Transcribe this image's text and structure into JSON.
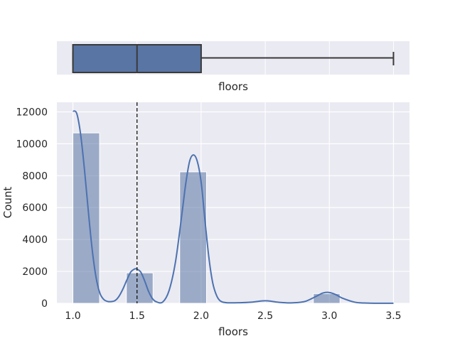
{
  "chart_data": [
    {
      "type": "box",
      "orientation": "horizontal",
      "xlabel": "floors",
      "xlim": [
        0.875,
        3.625
      ],
      "box": {
        "whisker_low": 1.0,
        "q1": 1.0,
        "median": 1.5,
        "q3": 2.0,
        "whisker_high": 3.5
      },
      "colors": {
        "box_fill": "#5975a4",
        "line": "#3a3a3a",
        "background": "#eaeaf2",
        "grid": "#ffffff"
      }
    },
    {
      "type": "bar",
      "subtype": "histogram_with_kde",
      "xlabel": "floors",
      "ylabel": "Count",
      "xlim": [
        0.875,
        3.625
      ],
      "ylim": [
        0,
        12600
      ],
      "x_ticks": [
        "1.0",
        "1.5",
        "2.0",
        "2.5",
        "3.0",
        "3.5"
      ],
      "y_ticks": [
        "0",
        "2000",
        "4000",
        "6000",
        "8000",
        "10000",
        "12000"
      ],
      "bins": [
        {
          "start": 1.0,
          "end": 1.208,
          "count": 10680
        },
        {
          "start": 1.208,
          "end": 1.417,
          "count": 0
        },
        {
          "start": 1.417,
          "end": 1.625,
          "count": 1910
        },
        {
          "start": 1.625,
          "end": 1.833,
          "count": 0
        },
        {
          "start": 1.833,
          "end": 2.042,
          "count": 8240
        },
        {
          "start": 2.042,
          "end": 2.25,
          "count": 0
        },
        {
          "start": 2.25,
          "end": 2.458,
          "count": 0
        },
        {
          "start": 2.458,
          "end": 2.667,
          "count": 8
        },
        {
          "start": 2.667,
          "end": 2.875,
          "count": 0
        },
        {
          "start": 2.875,
          "end": 3.083,
          "count": 610
        },
        {
          "start": 3.083,
          "end": 3.292,
          "count": 0
        },
        {
          "start": 3.292,
          "end": 3.5,
          "count": 5
        }
      ],
      "kde": {
        "x": [
          1.0,
          1.03,
          1.06,
          1.09,
          1.12,
          1.15,
          1.18,
          1.21,
          1.24,
          1.27,
          1.3,
          1.33,
          1.36,
          1.39,
          1.42,
          1.45,
          1.48,
          1.5,
          1.53,
          1.56,
          1.59,
          1.62,
          1.65,
          1.7,
          1.75,
          1.8,
          1.85,
          1.88,
          1.91,
          1.94,
          1.97,
          2.0,
          2.03,
          2.06,
          2.09,
          2.12,
          2.15,
          2.2,
          2.3,
          2.4,
          2.45,
          2.5,
          2.55,
          2.6,
          2.7,
          2.8,
          2.85,
          2.9,
          2.95,
          3.0,
          3.05,
          3.1,
          3.2,
          3.3,
          3.4,
          3.5
        ],
        "y": [
          12050,
          11900,
          10600,
          8400,
          5800,
          3400,
          1650,
          650,
          250,
          120,
          110,
          180,
          450,
          900,
          1450,
          1950,
          2150,
          2150,
          1950,
          1400,
          750,
          300,
          100,
          80,
          800,
          2600,
          5600,
          7500,
          8900,
          9300,
          8900,
          7600,
          5200,
          2900,
          1300,
          500,
          150,
          40,
          40,
          80,
          130,
          160,
          130,
          70,
          30,
          100,
          250,
          450,
          650,
          680,
          550,
          330,
          70,
          15,
          5,
          5
        ]
      },
      "vline": {
        "x": 1.5,
        "style": "dashed",
        "color": "#111111"
      },
      "colors": {
        "bar_fill": "#5975a4",
        "line": "#4c72b0",
        "background": "#eaeaf2",
        "grid": "#ffffff"
      }
    }
  ]
}
